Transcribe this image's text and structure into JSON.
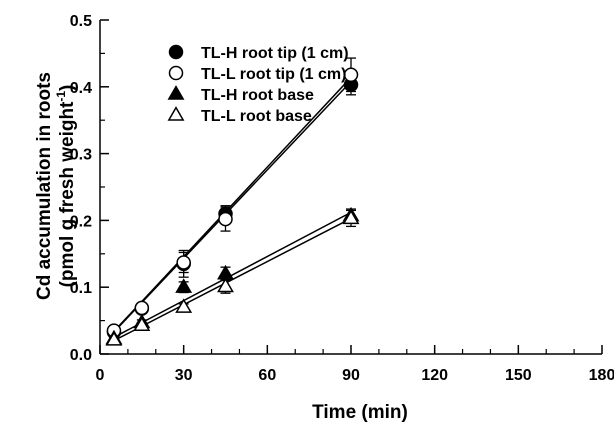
{
  "chart_data": {
    "type": "scatter",
    "title": "",
    "xlabel": "Time (min)",
    "ylabel_line1": "Cd accumulation in roots",
    "ylabel_line2_pre": "(pmol g fresh weight",
    "ylabel_line2_sup": "-1",
    "ylabel_line2_post": ")",
    "xlim": [
      0,
      180
    ],
    "ylim": [
      0,
      0.5
    ],
    "x_ticks": [
      0,
      30,
      60,
      90,
      120,
      150,
      180
    ],
    "x_tick_labels": [
      "0",
      "30",
      "60",
      "90",
      "120",
      "150",
      "180"
    ],
    "y_ticks": [
      0,
      0.1,
      0.2,
      0.3,
      0.4,
      0.5
    ],
    "y_tick_labels": [
      "0.0",
      "0.1",
      "0.2",
      "0.3",
      "0.4",
      "0.5"
    ],
    "legend_position": "top-left",
    "grid": false,
    "series": [
      {
        "name": "TL-H root tip (1 cm)",
        "marker": "circle",
        "filled": true,
        "x": [
          5,
          15,
          30,
          45,
          90
        ],
        "y": [
          0.033,
          0.068,
          0.135,
          0.21,
          0.403
        ],
        "err": [
          0.004,
          0.004,
          0.02,
          0.012,
          0.015
        ],
        "fit": [
          [
            5,
            0.033
          ],
          [
            90,
            0.408
          ]
        ]
      },
      {
        "name": "TL-L root tip (1 cm)",
        "marker": "circle",
        "filled": false,
        "x": [
          5,
          15,
          30,
          45,
          90
        ],
        "y": [
          0.035,
          0.069,
          0.137,
          0.202,
          0.418
        ],
        "err": [
          0.004,
          0.004,
          0.015,
          0.018,
          0.025
        ],
        "fit": [
          [
            5,
            0.034
          ],
          [
            90,
            0.414
          ]
        ]
      },
      {
        "name": "TL-H root base",
        "marker": "triangle",
        "filled": true,
        "x": [
          5,
          15,
          30,
          45,
          90
        ],
        "y": [
          0.023,
          0.047,
          0.1,
          0.12,
          0.207
        ],
        "err": [
          0.004,
          0.004,
          0.008,
          0.01,
          0.01
        ],
        "fit": [
          [
            5,
            0.025
          ],
          [
            90,
            0.212
          ]
        ]
      },
      {
        "name": "TL-L root base",
        "marker": "triangle",
        "filled": false,
        "x": [
          5,
          15,
          30,
          45,
          90
        ],
        "y": [
          0.021,
          0.043,
          0.07,
          0.101,
          0.203
        ],
        "err": [
          0.004,
          0.004,
          0.005,
          0.01,
          0.012
        ],
        "fit": [
          [
            5,
            0.02
          ],
          [
            90,
            0.203
          ]
        ]
      }
    ]
  }
}
